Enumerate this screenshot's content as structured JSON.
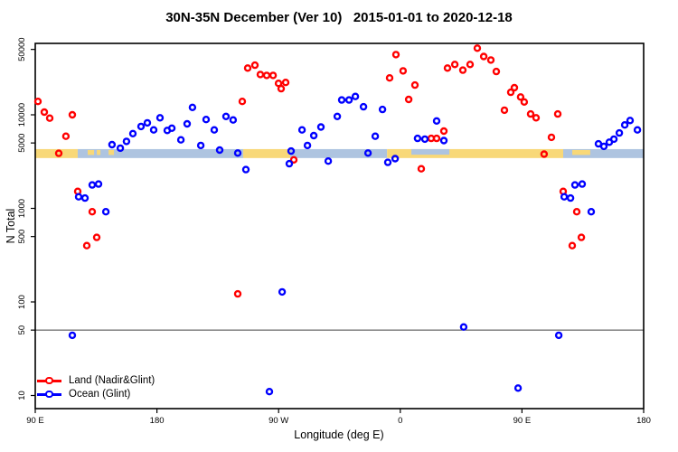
{
  "chart_data": {
    "type": "scatter",
    "title": "30N-35N December (Ver 10)   2015-01-01 to 2020-12-18",
    "xlabel": "Longitude (deg E)",
    "ylabel": "N Total",
    "x_axis": {
      "label": "Longitude (deg E)",
      "range": [
        -270,
        180
      ],
      "ticks": [
        {
          "lon": -270,
          "label": "90 E"
        },
        {
          "lon": -180,
          "label": "180"
        },
        {
          "lon": -90,
          "label": "90 W"
        },
        {
          "lon": 0,
          "label": "0"
        },
        {
          "lon": 90,
          "label": "90 E"
        },
        {
          "lon": 180,
          "label": "180"
        }
      ]
    },
    "y_axis": {
      "label": "N Total",
      "scale": "log",
      "range": [
        6,
        70000
      ],
      "ticks": [
        {
          "value": 50000,
          "label": "50000"
        },
        {
          "value": 10000,
          "label": "10000"
        },
        {
          "value": 5000,
          "label": "5000"
        },
        {
          "value": 1000,
          "label": "1000"
        },
        {
          "value": 500,
          "label": "500"
        },
        {
          "value": 100,
          "label": "100"
        },
        {
          "value": 50,
          "label": "50"
        },
        {
          "value": 10,
          "label": "10"
        }
      ]
    },
    "reference_line": {
      "value": 50
    },
    "map_strip": {
      "top_n": 4300,
      "bottom_n": 3450,
      "land_color": "#F8D878",
      "ocean_color": "#AEC4E0",
      "segments": [
        {
          "from": -270,
          "to": -238.6,
          "type": "land"
        },
        {
          "from": -238.6,
          "to": -116.2,
          "type": "ocean"
        },
        {
          "from": -231.2,
          "to": -226.5,
          "type": "island"
        },
        {
          "from": -224.5,
          "to": -221.8,
          "type": "island"
        },
        {
          "from": -215.8,
          "to": -211.8,
          "type": "island"
        },
        {
          "from": -116.2,
          "to": -81.4,
          "type": "land"
        },
        {
          "from": -81.4,
          "to": -9.8,
          "type": "ocean"
        },
        {
          "from": -9.8,
          "to": 120.5,
          "type": "land"
        },
        {
          "from": 120.5,
          "to": 180,
          "type": "ocean"
        },
        {
          "from": 127.2,
          "to": 140.5,
          "type": "island"
        }
      ],
      "notches": [
        {
          "from": 8.2,
          "to": 36.3,
          "depth": 0.62
        }
      ]
    },
    "legend": [
      {
        "label": "Land (Nadir&Glint)",
        "color": "#FF0000"
      },
      {
        "label": "Ocean (Glint)",
        "color": "#0000FF"
      }
    ],
    "series": [
      {
        "name": "Land (Nadir&Glint)",
        "color": "#FF0000",
        "points": [
          [
            -268,
            13900
          ],
          [
            -263.3,
            10700
          ],
          [
            -259.3,
            9200
          ],
          [
            -252.6,
            3880
          ],
          [
            -247.3,
            5900
          ],
          [
            -242.6,
            10000
          ],
          [
            -238.6,
            1520
          ],
          [
            -231.9,
            400
          ],
          [
            -227.9,
            920
          ],
          [
            -224.5,
            490
          ],
          [
            -120.2,
            122
          ],
          [
            -116.9,
            13900
          ],
          [
            -112.9,
            31600
          ],
          [
            -107.5,
            33900
          ],
          [
            -103.5,
            27000
          ],
          [
            -98.8,
            26400
          ],
          [
            -94.1,
            26400
          ],
          [
            -90.1,
            21700
          ],
          [
            -88.1,
            19000
          ],
          [
            -84.8,
            22200
          ],
          [
            -78.8,
            3300
          ],
          [
            -7.9,
            24800
          ],
          [
            -3.2,
            44000
          ],
          [
            2.1,
            29500
          ],
          [
            6.2,
            14600
          ],
          [
            10.8,
            20800
          ],
          [
            15.5,
            2650
          ],
          [
            22.9,
            5600
          ],
          [
            26.9,
            5600
          ],
          [
            32.2,
            6700
          ],
          [
            34.9,
            31600
          ],
          [
            40.3,
            34500
          ],
          [
            46.3,
            30000
          ],
          [
            51.6,
            34500
          ],
          [
            57,
            51500
          ],
          [
            61.7,
            42000
          ],
          [
            67,
            38500
          ],
          [
            71,
            29000
          ],
          [
            77,
            11200
          ],
          [
            81.7,
            17400
          ],
          [
            84.4,
            19500
          ],
          [
            89,
            15500
          ],
          [
            91.7,
            13700
          ],
          [
            96.4,
            10200
          ],
          [
            100.4,
            9300
          ],
          [
            106.4,
            3800
          ],
          [
            111.8,
            5750
          ],
          [
            116.5,
            10200
          ],
          [
            120.5,
            1520
          ],
          [
            127.2,
            400
          ],
          [
            130.5,
            920
          ],
          [
            133.9,
            490
          ]
        ]
      },
      {
        "name": "Ocean (Glint)",
        "color": "#0000FF",
        "points": [
          [
            -242.6,
            44
          ],
          [
            -237.9,
            1330
          ],
          [
            -233.2,
            1290
          ],
          [
            -227.9,
            1780
          ],
          [
            -223.2,
            1820
          ],
          [
            -217.8,
            920
          ],
          [
            -213.2,
            4800
          ],
          [
            -207.1,
            4400
          ],
          [
            -202.5,
            5200
          ],
          [
            -197.8,
            6300
          ],
          [
            -191.8,
            7500
          ],
          [
            -187.1,
            8200
          ],
          [
            -182.4,
            6900
          ],
          [
            -177.7,
            9300
          ],
          [
            -172.4,
            6800
          ],
          [
            -169,
            7200
          ],
          [
            -162.3,
            5400
          ],
          [
            -157.7,
            8000
          ],
          [
            -153.7,
            12000
          ],
          [
            -147.6,
            4700
          ],
          [
            -143.6,
            8900
          ],
          [
            -137.6,
            6900
          ],
          [
            -133.6,
            4200
          ],
          [
            -128.9,
            9600
          ],
          [
            -123.6,
            8800
          ],
          [
            -120.2,
            3900
          ],
          [
            -114.2,
            2600
          ],
          [
            -96.8,
            11
          ],
          [
            -87.4,
            128
          ],
          [
            -82.1,
            3000
          ],
          [
            -80.8,
            4100
          ],
          [
            -72.7,
            6900
          ],
          [
            -68.7,
            4700
          ],
          [
            -64,
            6000
          ],
          [
            -58.7,
            7400
          ],
          [
            -53.3,
            3200
          ],
          [
            -46.6,
            9600
          ],
          [
            -43.3,
            14400
          ],
          [
            -37.9,
            14400
          ],
          [
            -33.2,
            15700
          ],
          [
            -27.2,
            12200
          ],
          [
            -23.9,
            3900
          ],
          [
            -18.5,
            5900
          ],
          [
            -13.2,
            11400
          ],
          [
            -9.2,
            3100
          ],
          [
            -3.8,
            3400
          ],
          [
            12.8,
            5600
          ],
          [
            18.2,
            5500
          ],
          [
            26.9,
            8600
          ],
          [
            32.2,
            5300
          ],
          [
            46.9,
            54
          ],
          [
            87.1,
            12
          ],
          [
            117.2,
            44
          ],
          [
            121.2,
            1330
          ],
          [
            125.9,
            1290
          ],
          [
            129.2,
            1780
          ],
          [
            134.5,
            1820
          ],
          [
            141.2,
            920
          ],
          [
            146.6,
            4900
          ],
          [
            150.6,
            4600
          ],
          [
            154.6,
            5100
          ],
          [
            158,
            5500
          ],
          [
            162,
            6400
          ],
          [
            166,
            7800
          ],
          [
            170,
            8700
          ],
          [
            175.4,
            6900
          ]
        ]
      }
    ]
  }
}
